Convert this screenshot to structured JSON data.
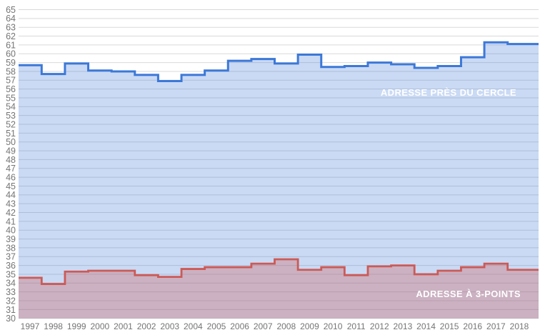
{
  "chart_data": {
    "type": "area",
    "step": true,
    "title": "",
    "xlabel": "",
    "ylabel": "",
    "grid": true,
    "legend_position": "inline-annotations",
    "x_labels": [
      "1997",
      "1998",
      "1999",
      "2000",
      "2001",
      "2002",
      "2003",
      "2004",
      "2005",
      "2006",
      "2007",
      "2008",
      "2009",
      "2010",
      "2011",
      "2012",
      "2013",
      "2014",
      "2015",
      "2016",
      "2017",
      "2018"
    ],
    "y_axis": {
      "min": 30,
      "max": 65,
      "tick_step": 1
    },
    "series": [
      {
        "name": "ADRESSE PRÈS DU CERCLE",
        "color": "#3c78d8",
        "fill_opacity": 0.27,
        "values": [
          58.7,
          57.7,
          58.9,
          58.1,
          58.0,
          57.6,
          56.9,
          57.6,
          58.1,
          59.2,
          59.4,
          58.9,
          59.9,
          58.5,
          58.6,
          59.0,
          58.8,
          58.4,
          58.6,
          59.6,
          61.3,
          61.1
        ]
      },
      {
        "name": "ADRESSE À 3-POINTS",
        "color": "#cc5a57",
        "fill_opacity": 0.32,
        "values": [
          34.6,
          33.9,
          35.3,
          35.4,
          35.4,
          34.9,
          34.7,
          35.6,
          35.8,
          35.8,
          36.2,
          36.7,
          35.5,
          35.8,
          34.9,
          35.9,
          36.0,
          35.0,
          35.4,
          35.8,
          36.2,
          35.5
        ]
      }
    ],
    "colors": {
      "grid": "#d9d9d9",
      "axis_text": "#757575",
      "background": "#ffffff",
      "annotation_text": "#ffffff"
    }
  }
}
